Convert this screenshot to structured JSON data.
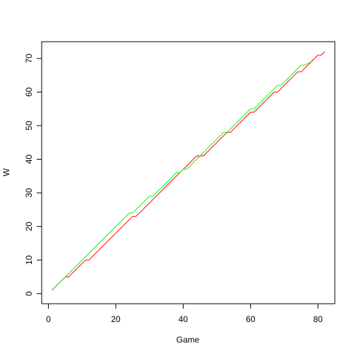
{
  "chart_data": {
    "type": "line",
    "title": "",
    "xlabel": "Game",
    "ylabel": "W",
    "xlim": [
      -2,
      85
    ],
    "ylim": [
      -3,
      75
    ],
    "x_ticks": [
      0,
      20,
      40,
      60,
      80
    ],
    "y_ticks": [
      0,
      10,
      20,
      30,
      40,
      50,
      60,
      70
    ],
    "grid": false,
    "legend": "none",
    "series": [
      {
        "color": "#ff0000",
        "points": [
          [
            1,
            1
          ],
          [
            5,
            5
          ],
          [
            6,
            5
          ],
          [
            11,
            10
          ],
          [
            12,
            10
          ],
          [
            25,
            23
          ],
          [
            26,
            23
          ],
          [
            44,
            41
          ],
          [
            46,
            41
          ],
          [
            52,
            47
          ],
          [
            53,
            48
          ],
          [
            54,
            48
          ],
          [
            60,
            54
          ],
          [
            61,
            54
          ],
          [
            67,
            60
          ],
          [
            68,
            60
          ],
          [
            73,
            65
          ],
          [
            74,
            66
          ],
          [
            75,
            66
          ],
          [
            80,
            71
          ],
          [
            81,
            71
          ],
          [
            82,
            72
          ]
        ]
      },
      {
        "color": "#00ff00",
        "points": [
          [
            1,
            1
          ],
          [
            24,
            24
          ],
          [
            25,
            24
          ],
          [
            30,
            29
          ],
          [
            31,
            29
          ],
          [
            38,
            36
          ],
          [
            39,
            36
          ],
          [
            40,
            37
          ],
          [
            41,
            37
          ],
          [
            52,
            48
          ],
          [
            53,
            48
          ],
          [
            59,
            54
          ],
          [
            60,
            55
          ],
          [
            61,
            55
          ],
          [
            67,
            61
          ],
          [
            68,
            62
          ],
          [
            69,
            62
          ],
          [
            75,
            68
          ],
          [
            76,
            68
          ],
          [
            78,
            69
          ]
        ]
      }
    ],
    "colors": {
      "axis": "#000000",
      "background": "#ffffff"
    }
  }
}
